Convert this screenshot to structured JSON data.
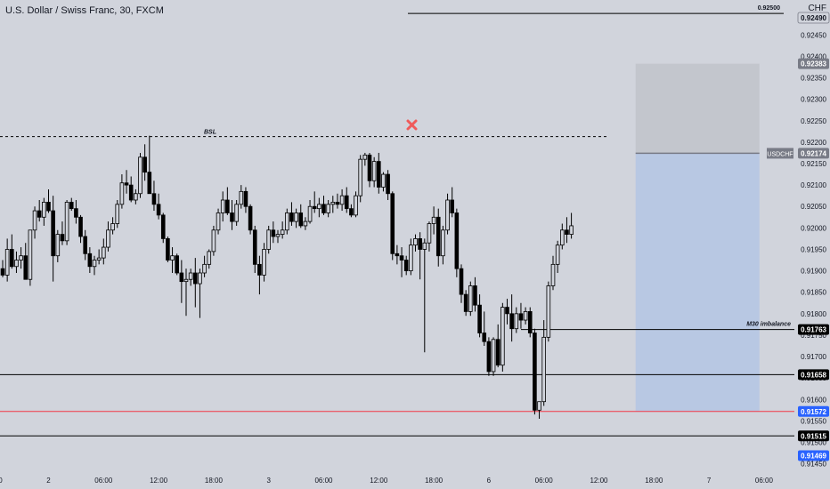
{
  "header": {
    "symbol_title": "U.S. Dollar / Swiss Franc, 30, FXCM",
    "currency": "CHF"
  },
  "colors": {
    "background": "#d1d4dc",
    "candle_bull": "#d1d4dc",
    "candle_bear": "#000000",
    "wick": "#000000",
    "stop_zone": "#c3c6cd",
    "target_zone": "#b8c8e3",
    "price_tag_blue": "#2962ff",
    "red_line": "#f23645",
    "marker_red": "#f05a5a"
  },
  "annotations": {
    "bsl": "BSL",
    "m30_imbalance": "M30 imbalance",
    "top_level": "0.92500",
    "ticker_tag": "USDCHF"
  },
  "chart_data": {
    "type": "candlestick",
    "ylim": [
      0.91445,
      0.92535
    ],
    "y_ticks": [
      "0.92450",
      "0.92400",
      "0.92350",
      "0.92300",
      "0.92250",
      "0.92200",
      "0.92150",
      "0.92100",
      "0.92050",
      "0.92000",
      "0.91950",
      "0.91900",
      "0.91850",
      "0.91800",
      "0.91750",
      "0.91700",
      "0.91650",
      "0.91600",
      "0.91550",
      "0.91500",
      "0.91450"
    ],
    "x_ticks": [
      {
        "label": "18:00",
        "bar": -2
      },
      {
        "label": "2",
        "bar": 10
      },
      {
        "label": "06:00",
        "bar": 22
      },
      {
        "label": "12:00",
        "bar": 34
      },
      {
        "label": "18:00",
        "bar": 46
      },
      {
        "label": "3",
        "bar": 58
      },
      {
        "label": "06:00",
        "bar": 70
      },
      {
        "label": "12:00",
        "bar": 82
      },
      {
        "label": "18:00",
        "bar": 94
      },
      {
        "label": "6",
        "bar": 106
      },
      {
        "label": "06:00",
        "bar": 118
      },
      {
        "label": "12:00",
        "bar": 130
      },
      {
        "label": "18:00",
        "bar": 142
      },
      {
        "label": "7",
        "bar": 154
      },
      {
        "label": "06:00",
        "bar": 166
      }
    ],
    "price_tags": [
      {
        "label": "0.92490",
        "value": 0.9249,
        "style": "plain"
      },
      {
        "label": "0.92383",
        "value": 0.92383,
        "style": "gray"
      },
      {
        "label": "0.92174",
        "value": 0.92174,
        "style": "gray"
      },
      {
        "label": "0.91763",
        "value": 0.91763,
        "style": "black"
      },
      {
        "label": "0.91658",
        "value": 0.91658,
        "style": "black"
      },
      {
        "label": "0.91572",
        "value": 0.91572,
        "style": "blue"
      },
      {
        "label": "0.91515",
        "value": 0.91515,
        "style": "black"
      },
      {
        "label": "0.91469",
        "value": 0.91469,
        "style": "blue"
      }
    ],
    "levels": {
      "top": 0.925,
      "bsl": 0.92213,
      "imbalance": 0.91763,
      "low_line": 0.91658,
      "red_line": 0.91572,
      "bottom_line": 0.91515
    },
    "position_tool": {
      "entry": 0.92174,
      "stop": 0.92383,
      "target": 0.91572,
      "start_bar": 138,
      "end_bar": 165
    },
    "candles": [
      [
        0.91905,
        0.91925,
        0.91885,
        0.9189
      ],
      [
        0.9189,
        0.91975,
        0.91875,
        0.9195
      ],
      [
        0.9195,
        0.91985,
        0.91905,
        0.9191
      ],
      [
        0.9191,
        0.91945,
        0.91895,
        0.91925
      ],
      [
        0.91925,
        0.91955,
        0.91905,
        0.91935
      ],
      [
        0.91935,
        0.91965,
        0.9188,
        0.9188
      ],
      [
        0.9188,
        0.91995,
        0.91865,
        0.91995
      ],
      [
        0.91995,
        0.9205,
        0.91975,
        0.9204
      ],
      [
        0.9204,
        0.92065,
        0.92015,
        0.92025
      ],
      [
        0.92025,
        0.9207,
        0.92005,
        0.9206
      ],
      [
        0.9206,
        0.9209,
        0.92035,
        0.9204
      ],
      [
        0.9204,
        0.92075,
        0.91875,
        0.91935
      ],
      [
        0.91935,
        0.91995,
        0.9192,
        0.91985
      ],
      [
        0.91985,
        0.92015,
        0.9196,
        0.9197
      ],
      [
        0.9197,
        0.92065,
        0.9196,
        0.9206
      ],
      [
        0.9206,
        0.9207,
        0.9204,
        0.92045
      ],
      [
        0.92045,
        0.92065,
        0.9201,
        0.92025
      ],
      [
        0.92025,
        0.9203,
        0.91965,
        0.9198
      ],
      [
        0.9198,
        0.91995,
        0.91925,
        0.9194
      ],
      [
        0.9194,
        0.91955,
        0.91895,
        0.9191
      ],
      [
        0.9191,
        0.91935,
        0.9189,
        0.91925
      ],
      [
        0.91925,
        0.9195,
        0.91915,
        0.9193
      ],
      [
        0.9193,
        0.91975,
        0.91915,
        0.91955
      ],
      [
        0.91955,
        0.92015,
        0.91945,
        0.91995
      ],
      [
        0.91995,
        0.92025,
        0.91985,
        0.9201
      ],
      [
        0.9201,
        0.92065,
        0.92,
        0.92055
      ],
      [
        0.92055,
        0.92125,
        0.92045,
        0.92105
      ],
      [
        0.92105,
        0.92135,
        0.9208,
        0.921
      ],
      [
        0.921,
        0.9212,
        0.9206,
        0.92065
      ],
      [
        0.92065,
        0.9209,
        0.92055,
        0.9208
      ],
      [
        0.9208,
        0.92175,
        0.9207,
        0.92165
      ],
      [
        0.92165,
        0.92195,
        0.9211,
        0.9213
      ],
      [
        0.9213,
        0.92215,
        0.9209,
        0.9208
      ],
      [
        0.9208,
        0.9211,
        0.9204,
        0.92055
      ],
      [
        0.92055,
        0.9208,
        0.9202,
        0.9203
      ],
      [
        0.9203,
        0.92035,
        0.91965,
        0.91975
      ],
      [
        0.91975,
        0.9198,
        0.9192,
        0.91925
      ],
      [
        0.91925,
        0.91955,
        0.91895,
        0.91935
      ],
      [
        0.91935,
        0.9194,
        0.9189,
        0.91895
      ],
      [
        0.91895,
        0.91925,
        0.91825,
        0.91875
      ],
      [
        0.91875,
        0.91905,
        0.91795,
        0.9188
      ],
      [
        0.9188,
        0.91905,
        0.91865,
        0.91895
      ],
      [
        0.91895,
        0.9193,
        0.91815,
        0.9187
      ],
      [
        0.9187,
        0.91905,
        0.9179,
        0.91895
      ],
      [
        0.91895,
        0.91935,
        0.91885,
        0.91915
      ],
      [
        0.91915,
        0.9195,
        0.91905,
        0.91945
      ],
      [
        0.91945,
        0.92005,
        0.91935,
        0.91995
      ],
      [
        0.91995,
        0.92045,
        0.91985,
        0.92035
      ],
      [
        0.92035,
        0.92085,
        0.92015,
        0.92065
      ],
      [
        0.92065,
        0.92095,
        0.9203,
        0.92035
      ],
      [
        0.92035,
        0.92065,
        0.91995,
        0.92015
      ],
      [
        0.92015,
        0.92065,
        0.92005,
        0.92055
      ],
      [
        0.92055,
        0.921,
        0.92045,
        0.92085
      ],
      [
        0.92085,
        0.92095,
        0.92035,
        0.9205
      ],
      [
        0.9205,
        0.92055,
        0.91985,
        0.91995
      ],
      [
        0.91995,
        0.92005,
        0.91895,
        0.91915
      ],
      [
        0.91915,
        0.91935,
        0.91845,
        0.9189
      ],
      [
        0.9189,
        0.91965,
        0.91875,
        0.9195
      ],
      [
        0.9195,
        0.92005,
        0.9194,
        0.91995
      ],
      [
        0.91995,
        0.92015,
        0.91965,
        0.9198
      ],
      [
        0.9198,
        0.91995,
        0.91965,
        0.91985
      ],
      [
        0.91985,
        0.92015,
        0.91975,
        0.91995
      ],
      [
        0.91995,
        0.92045,
        0.91985,
        0.92035
      ],
      [
        0.92035,
        0.9206,
        0.92005,
        0.92015
      ],
      [
        0.92015,
        0.92045,
        0.92,
        0.92035
      ],
      [
        0.92035,
        0.92055,
        0.92,
        0.92005
      ],
      [
        0.92005,
        0.92025,
        0.91995,
        0.92015
      ],
      [
        0.92015,
        0.92065,
        0.9201,
        0.9205
      ],
      [
        0.9205,
        0.92085,
        0.92035,
        0.92045
      ],
      [
        0.92045,
        0.9207,
        0.92025,
        0.92055
      ],
      [
        0.92055,
        0.92075,
        0.9203,
        0.92035
      ],
      [
        0.92035,
        0.92065,
        0.92025,
        0.92055
      ],
      [
        0.92055,
        0.92075,
        0.92035,
        0.9206
      ],
      [
        0.9206,
        0.9208,
        0.92045,
        0.92055
      ],
      [
        0.92055,
        0.9209,
        0.9204,
        0.92075
      ],
      [
        0.92075,
        0.92095,
        0.92035,
        0.92045
      ],
      [
        0.92045,
        0.92055,
        0.92025,
        0.9203
      ],
      [
        0.9203,
        0.92085,
        0.92025,
        0.92075
      ],
      [
        0.92075,
        0.9217,
        0.9206,
        0.9216
      ],
      [
        0.9216,
        0.92175,
        0.92145,
        0.9217
      ],
      [
        0.9217,
        0.92175,
        0.92095,
        0.9211
      ],
      [
        0.9211,
        0.92165,
        0.92095,
        0.92155
      ],
      [
        0.92155,
        0.92175,
        0.9208,
        0.92095
      ],
      [
        0.92095,
        0.9213,
        0.92085,
        0.92125
      ],
      [
        0.92125,
        0.92135,
        0.92065,
        0.9208
      ],
      [
        0.9208,
        0.92085,
        0.91925,
        0.9194
      ],
      [
        0.9194,
        0.9196,
        0.91915,
        0.91935
      ],
      [
        0.91935,
        0.91955,
        0.91885,
        0.91925
      ],
      [
        0.91925,
        0.91935,
        0.9189,
        0.919
      ],
      [
        0.919,
        0.91975,
        0.9189,
        0.9196
      ],
      [
        0.9196,
        0.91985,
        0.91945,
        0.91975
      ],
      [
        0.91975,
        0.9199,
        0.9188,
        0.9195
      ],
      [
        0.9195,
        0.91975,
        0.9171,
        0.91965
      ],
      [
        0.91965,
        0.92015,
        0.91945,
        0.9201
      ],
      [
        0.9201,
        0.9205,
        0.91985,
        0.92025
      ],
      [
        0.92025,
        0.92045,
        0.9191,
        0.91935
      ],
      [
        0.91935,
        0.92005,
        0.91915,
        0.91995
      ],
      [
        0.91995,
        0.9208,
        0.91985,
        0.92065
      ],
      [
        0.92065,
        0.92095,
        0.92025,
        0.92035
      ],
      [
        0.92035,
        0.92045,
        0.91885,
        0.91905
      ],
      [
        0.91905,
        0.91915,
        0.91825,
        0.91845
      ],
      [
        0.91845,
        0.91855,
        0.91795,
        0.91805
      ],
      [
        0.91805,
        0.91875,
        0.91795,
        0.91865
      ],
      [
        0.91865,
        0.91885,
        0.91805,
        0.9182
      ],
      [
        0.9182,
        0.91845,
        0.91745,
        0.91755
      ],
      [
        0.91755,
        0.91805,
        0.91725,
        0.91735
      ],
      [
        0.91735,
        0.91745,
        0.91655,
        0.91665
      ],
      [
        0.91665,
        0.91745,
        0.91655,
        0.9174
      ],
      [
        0.9174,
        0.91775,
        0.91675,
        0.9168
      ],
      [
        0.9168,
        0.91825,
        0.91665,
        0.91815
      ],
      [
        0.91815,
        0.91835,
        0.91775,
        0.918
      ],
      [
        0.918,
        0.91845,
        0.91735,
        0.91765
      ],
      [
        0.91765,
        0.91815,
        0.91755,
        0.918
      ],
      [
        0.918,
        0.91825,
        0.91765,
        0.91785
      ],
      [
        0.91785,
        0.91815,
        0.91775,
        0.91805
      ],
      [
        0.91805,
        0.91815,
        0.91745,
        0.91755
      ],
      [
        0.91755,
        0.91765,
        0.91565,
        0.91575
      ],
      [
        0.91575,
        0.91595,
        0.91555,
        0.91595
      ],
      [
        0.91595,
        0.91785,
        0.91585,
        0.91745
      ],
      [
        0.91745,
        0.91875,
        0.91735,
        0.91865
      ],
      [
        0.91865,
        0.91935,
        0.91855,
        0.91915
      ],
      [
        0.91915,
        0.9197,
        0.91895,
        0.9196
      ],
      [
        0.9196,
        0.9201,
        0.9195,
        0.91995
      ],
      [
        0.91995,
        0.92025,
        0.91965,
        0.91985
      ],
      [
        0.91985,
        0.92035,
        0.91975,
        0.92005
      ]
    ]
  }
}
